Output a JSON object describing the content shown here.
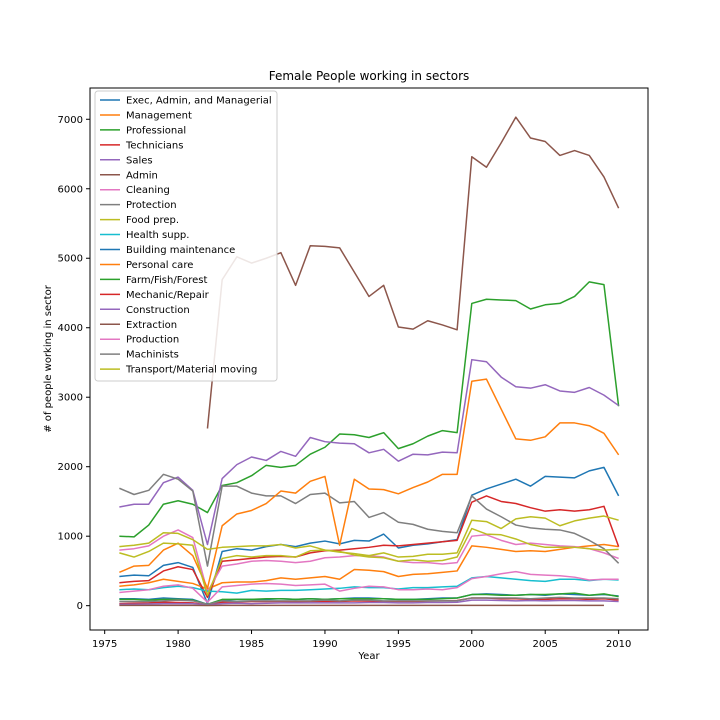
{
  "chart_data": {
    "type": "line",
    "title": "Female People working in sectors",
    "xlabel": "Year",
    "ylabel": "# of people working in sector",
    "xlim": [
      1974,
      2012
    ],
    "ylim": [
      -350,
      7450
    ],
    "xticks": [
      1975,
      1980,
      1985,
      1990,
      1995,
      2000,
      2005,
      2010
    ],
    "yticks": [
      0,
      1000,
      2000,
      3000,
      4000,
      5000,
      6000,
      7000
    ],
    "grid": false,
    "legend_position": "top-left",
    "x": [
      1976,
      1977,
      1978,
      1979,
      1980,
      1981,
      1982,
      1983,
      1984,
      1985,
      1986,
      1987,
      1988,
      1989,
      1990,
      1991,
      1992,
      1993,
      1994,
      1995,
      1996,
      1997,
      1998,
      1999,
      2000,
      2001,
      2002,
      2003,
      2004,
      2005,
      2006,
      2007,
      2008,
      2009,
      2010
    ],
    "series": [
      {
        "name": "Exec, Admin, and Managerial",
        "color": "#1f77b4",
        "values": [
          420,
          440,
          430,
          580,
          620,
          550,
          30,
          780,
          820,
          800,
          850,
          880,
          850,
          900,
          930,
          890,
          940,
          930,
          1030,
          830,
          870,
          890,
          920,
          950,
          1590,
          1680,
          1750,
          1820,
          1720,
          1860,
          1850,
          1840,
          1940,
          1990,
          1580
        ]
      },
      {
        "name": "Management",
        "color": "#ff7f0e",
        "values": [
          280,
          300,
          330,
          380,
          350,
          320,
          240,
          330,
          340,
          340,
          360,
          400,
          380,
          400,
          420,
          380,
          520,
          510,
          490,
          420,
          450,
          460,
          480,
          500,
          860,
          840,
          810,
          780,
          790,
          780,
          810,
          840,
          860,
          880,
          850
        ]
      },
      {
        "name": "Professional",
        "color": "#2ca02c",
        "values": [
          1000,
          990,
          1160,
          1460,
          1510,
          1460,
          1340,
          1730,
          1770,
          1870,
          2020,
          1990,
          2020,
          2180,
          2280,
          2470,
          2460,
          2420,
          2490,
          2260,
          2330,
          2440,
          2520,
          2490,
          4350,
          4410,
          4400,
          4390,
          4270,
          4330,
          4350,
          4450,
          4660,
          4620,
          2870
        ]
      },
      {
        "name": "Technicians",
        "color": "#d62728",
        "values": [
          330,
          350,
          360,
          500,
          560,
          520,
          120,
          640,
          660,
          680,
          700,
          710,
          700,
          760,
          790,
          800,
          820,
          840,
          870,
          860,
          880,
          900,
          920,
          940,
          1490,
          1580,
          1500,
          1470,
          1410,
          1360,
          1380,
          1360,
          1380,
          1430,
          850
        ]
      },
      {
        "name": "Sales",
        "color": "#9467bd",
        "values": [
          1420,
          1460,
          1460,
          1770,
          1850,
          1660,
          880,
          1830,
          2030,
          2140,
          2090,
          2220,
          2150,
          2420,
          2360,
          2340,
          2330,
          2200,
          2250,
          2080,
          2180,
          2170,
          2210,
          2200,
          3540,
          3510,
          3290,
          3150,
          3130,
          3180,
          3090,
          3070,
          3140,
          3030,
          2880
        ]
      },
      {
        "name": "Admin",
        "color": "#8c564b",
        "values": [
          null,
          null,
          null,
          null,
          null,
          null,
          2550,
          4690,
          5020,
          4930,
          5000,
          5080,
          4610,
          5180,
          5170,
          5150,
          4800,
          4450,
          4610,
          4010,
          3980,
          4100,
          4040,
          3970,
          6460,
          6310,
          6660,
          7030,
          6730,
          6680,
          6480,
          6550,
          6480,
          6170,
          5720
        ]
      },
      {
        "name": "Cleaning",
        "color": "#e377c2",
        "values": [
          800,
          820,
          860,
          1000,
          1090,
          980,
          200,
          570,
          600,
          640,
          650,
          640,
          620,
          640,
          690,
          700,
          720,
          720,
          700,
          640,
          620,
          620,
          600,
          620,
          1000,
          1020,
          940,
          880,
          900,
          880,
          860,
          850,
          820,
          760,
          680
        ]
      },
      {
        "name": "Protection",
        "color": "#7f7f7f",
        "values": [
          1690,
          1600,
          1660,
          1890,
          1820,
          1650,
          570,
          1720,
          1720,
          1620,
          1580,
          1580,
          1470,
          1600,
          1620,
          1480,
          1500,
          1270,
          1340,
          1200,
          1170,
          1100,
          1070,
          1050,
          1580,
          1390,
          1280,
          1160,
          1120,
          1100,
          1090,
          1040,
          940,
          820,
          610
        ]
      },
      {
        "name": "Food prep.",
        "color": "#bcbd22",
        "values": [
          850,
          870,
          900,
          1050,
          1040,
          950,
          810,
          840,
          850,
          860,
          860,
          880,
          830,
          860,
          800,
          770,
          750,
          720,
          760,
          700,
          710,
          740,
          740,
          760,
          1230,
          1210,
          1110,
          1250,
          1280,
          1260,
          1150,
          1220,
          1260,
          1290,
          1230
        ]
      },
      {
        "name": "Health supp.",
        "color": "#17becf",
        "values": [
          230,
          240,
          230,
          260,
          280,
          260,
          210,
          200,
          180,
          220,
          210,
          220,
          220,
          230,
          240,
          250,
          270,
          260,
          260,
          240,
          260,
          260,
          270,
          280,
          400,
          420,
          400,
          380,
          360,
          350,
          380,
          380,
          360,
          380,
          370
        ]
      },
      {
        "name": "Building maintenance",
        "color": "#1f77b4",
        "values": [
          100,
          100,
          90,
          110,
          100,
          90,
          20,
          80,
          90,
          90,
          90,
          100,
          90,
          100,
          90,
          100,
          110,
          110,
          100,
          90,
          90,
          100,
          110,
          110,
          160,
          170,
          160,
          150,
          160,
          150,
          170,
          160,
          150,
          160,
          140
        ]
      },
      {
        "name": "Personal care",
        "color": "#ff7f0e",
        "values": [
          480,
          570,
          580,
          800,
          900,
          720,
          250,
          1150,
          1320,
          1370,
          1470,
          1650,
          1620,
          1790,
          1860,
          870,
          1820,
          1680,
          1670,
          1610,
          1700,
          1780,
          1890,
          1890,
          3230,
          3260,
          2830,
          2400,
          2380,
          2430,
          2630,
          2630,
          2590,
          2480,
          2170
        ]
      },
      {
        "name": "Farm/Fish/Forest",
        "color": "#2ca02c",
        "values": [
          90,
          90,
          80,
          90,
          90,
          80,
          20,
          90,
          90,
          90,
          100,
          100,
          90,
          100,
          90,
          100,
          100,
          100,
          100,
          90,
          90,
          90,
          100,
          110,
          160,
          160,
          150,
          150,
          160,
          160,
          170,
          180,
          150,
          170,
          130
        ]
      },
      {
        "name": "Mechanic/Repair",
        "color": "#d62728",
        "values": [
          30,
          35,
          40,
          50,
          45,
          40,
          10,
          50,
          55,
          60,
          60,
          60,
          55,
          60,
          60,
          60,
          70,
          65,
          60,
          60,
          60,
          65,
          70,
          75,
          110,
          110,
          100,
          100,
          90,
          90,
          100,
          100,
          90,
          100,
          80
        ]
      },
      {
        "name": "Construction",
        "color": "#9467bd",
        "values": [
          20,
          20,
          25,
          30,
          30,
          30,
          10,
          30,
          35,
          30,
          35,
          40,
          40,
          40,
          40,
          40,
          40,
          45,
          45,
          40,
          40,
          45,
          45,
          50,
          80,
          80,
          75,
          70,
          75,
          70,
          75,
          75,
          70,
          70,
          60
        ]
      },
      {
        "name": "Extraction",
        "color": "#8c564b",
        "values": [
          5,
          5,
          5,
          5,
          5,
          5,
          2,
          5,
          5,
          5,
          5,
          5,
          5,
          5,
          5,
          5,
          5,
          5,
          5,
          5,
          5,
          5,
          5,
          5,
          5,
          5,
          5,
          5,
          5,
          5,
          5,
          5,
          5,
          5,
          null
        ]
      },
      {
        "name": "Production",
        "color": "#e377c2",
        "values": [
          190,
          210,
          230,
          280,
          300,
          250,
          50,
          270,
          290,
          310,
          320,
          310,
          290,
          300,
          310,
          210,
          250,
          280,
          270,
          230,
          230,
          240,
          230,
          260,
          390,
          420,
          460,
          490,
          450,
          440,
          430,
          410,
          370,
          380,
          380
        ]
      },
      {
        "name": "Machinists",
        "color": "#7f7f7f",
        "values": [
          60,
          60,
          60,
          70,
          80,
          70,
          20,
          70,
          60,
          70,
          70,
          70,
          70,
          70,
          80,
          70,
          80,
          80,
          70,
          70,
          70,
          70,
          70,
          70,
          110,
          110,
          110,
          110,
          100,
          110,
          120,
          110,
          110,
          110,
          100
        ]
      },
      {
        "name": "Transport/Material moving",
        "color": "#bcbd22",
        "values": [
          760,
          700,
          780,
          900,
          890,
          870,
          150,
          680,
          720,
          700,
          720,
          720,
          700,
          790,
          800,
          780,
          730,
          700,
          690,
          640,
          660,
          640,
          650,
          700,
          1110,
          1030,
          1020,
          960,
          880,
          840,
          840,
          840,
          820,
          800,
          810
        ]
      }
    ]
  }
}
